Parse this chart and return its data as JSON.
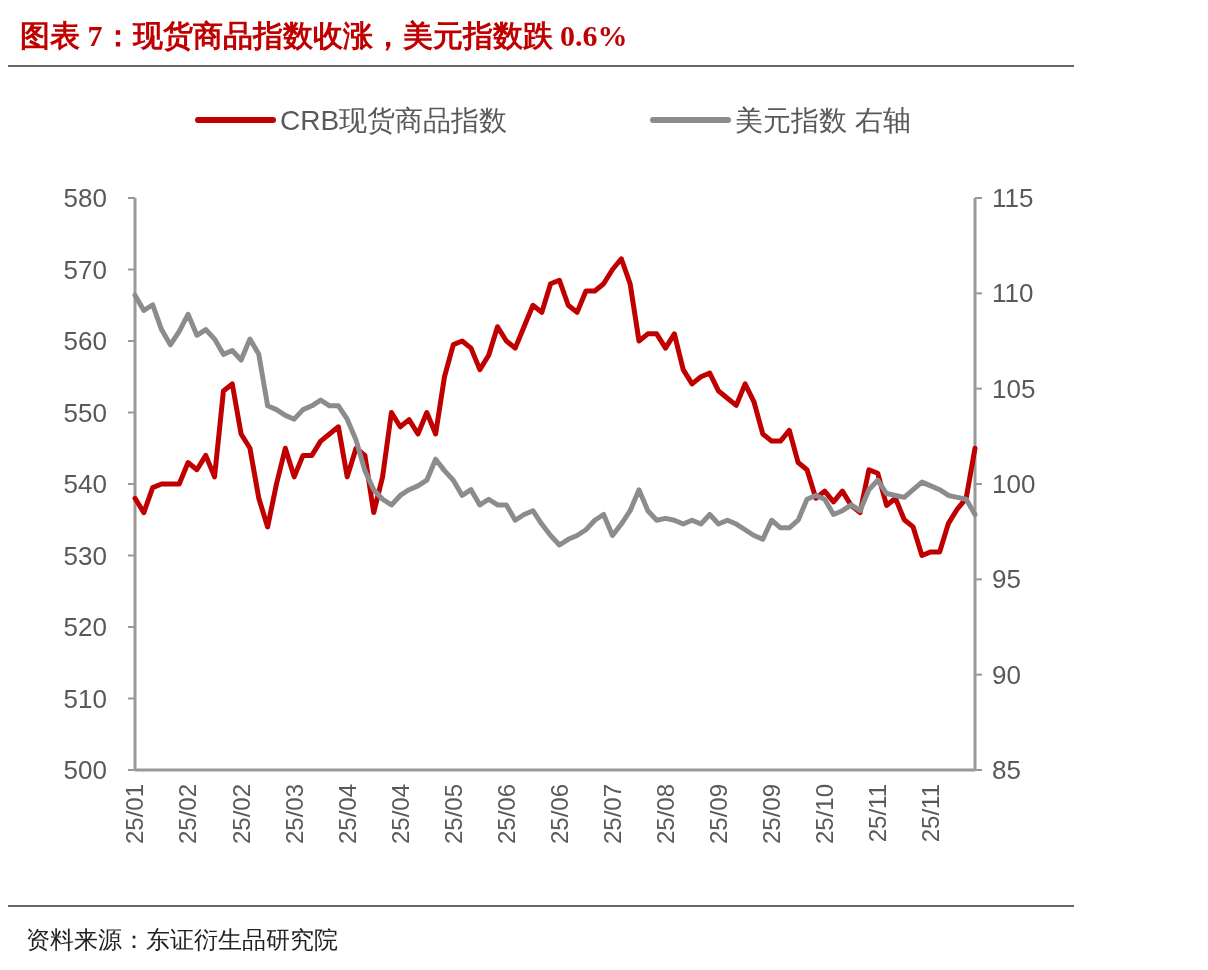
{
  "chart_data": {
    "type": "line",
    "title": "图表 7：现货商品指数收涨，美元指数跌 0.6%",
    "annotations": [
      "资料来源：东证衍生品研究院"
    ],
    "categories": [
      "25/01",
      null,
      null,
      null,
      null,
      null,
      "25/02",
      null,
      null,
      null,
      null,
      null,
      "25/02",
      null,
      null,
      null,
      null,
      null,
      "25/03",
      null,
      null,
      null,
      null,
      null,
      "25/04",
      null,
      null,
      null,
      null,
      null,
      "25/04",
      null,
      null,
      null,
      null,
      null,
      "25/05",
      null,
      null,
      null,
      null,
      null,
      "25/06",
      null,
      null,
      null,
      null,
      null,
      "25/06",
      null,
      null,
      null,
      null,
      null,
      "25/07",
      null,
      null,
      null,
      null,
      null,
      "25/08",
      null,
      null,
      null,
      null,
      null,
      "25/09",
      null,
      null,
      null,
      null,
      null,
      "25/09",
      null,
      null,
      null,
      null,
      null,
      "25/10",
      null,
      null,
      null,
      null,
      null,
      "25/11",
      null,
      null,
      null,
      null,
      null,
      "25/11",
      null,
      null,
      null,
      null,
      null
    ],
    "series": [
      {
        "name": "CRB现货商品指数",
        "color": "#c00000",
        "values": [
          538,
          536,
          539.5,
          540,
          540,
          540,
          543,
          542,
          544,
          541,
          553,
          554,
          547,
          545,
          538,
          534,
          540,
          545,
          541,
          544,
          544,
          546,
          547,
          548,
          541,
          545,
          544,
          536,
          541,
          550,
          548,
          549,
          547,
          550,
          547,
          555,
          559.5,
          560,
          559,
          556,
          558,
          562,
          560,
          559,
          562,
          565,
          564,
          568,
          568.5,
          565,
          564,
          567,
          567,
          568,
          570,
          571.5,
          568,
          560,
          561,
          561,
          559,
          561,
          556,
          554,
          555,
          555.5,
          553,
          552,
          551,
          554,
          551.5,
          547,
          546,
          546,
          547.5,
          543,
          542,
          538,
          539,
          537.5,
          539,
          537,
          536,
          542,
          541.5,
          537,
          538,
          535,
          534,
          530,
          530.5,
          530.5,
          534.5,
          536.5,
          538,
          545
        ]
      },
      {
        "name": "美元指数 右轴",
        "color": "#8c8c8c",
        "axis": "y2",
        "values": [
          109.9,
          109.1,
          109.4,
          108.1,
          107.3,
          108,
          108.9,
          107.8,
          108.1,
          107.6,
          106.8,
          107,
          106.5,
          107.6,
          106.8,
          104.1,
          103.9,
          103.6,
          103.4,
          103.9,
          104.1,
          104.4,
          104.1,
          104.1,
          103.4,
          102.3,
          100.7,
          99.7,
          99.2,
          98.9,
          99.4,
          99.7,
          99.9,
          100.2,
          101.3,
          100.7,
          100.2,
          99.4,
          99.7,
          98.9,
          99.2,
          98.9,
          98.9,
          98.1,
          98.4,
          98.6,
          97.9,
          97.3,
          96.8,
          97.1,
          97.3,
          97.6,
          98.1,
          98.4,
          97.3,
          97.9,
          98.6,
          99.7,
          98.6,
          98.1,
          98.2,
          98.1,
          97.9,
          98.1,
          97.9,
          98.4,
          97.9,
          98.1,
          97.9,
          97.6,
          97.3,
          97.1,
          98.1,
          97.7,
          97.7,
          98.1,
          99.2,
          99.4,
          99.2,
          98.4,
          98.6,
          98.9,
          98.6,
          99.7,
          100.2,
          99.5,
          99.4,
          99.3,
          99.7,
          100.1,
          99.9,
          99.7,
          99.4,
          99.3,
          99.2,
          98.4
        ]
      }
    ],
    "ylim": [
      500,
      580
    ],
    "yticks": [
      500,
      510,
      520,
      530,
      540,
      550,
      560,
      570,
      580
    ],
    "y2lim": [
      85,
      115
    ],
    "y2ticks": [
      85,
      90,
      95,
      100,
      105,
      110,
      115
    ],
    "legend": "top",
    "grid": false,
    "marker": "none",
    "line_style": "solid"
  }
}
